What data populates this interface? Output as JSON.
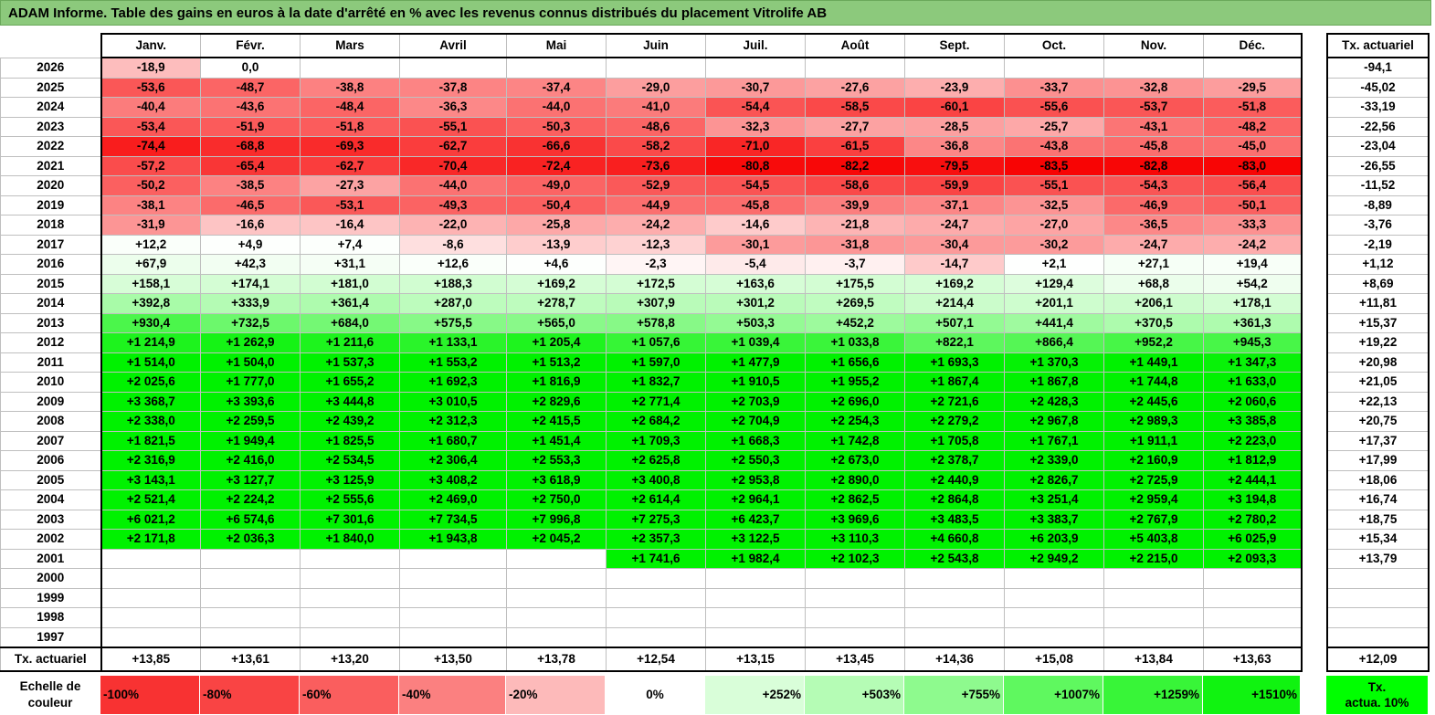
{
  "title": "ADAM Informe. Table des gains en euros à la date d'arrêté en % avec les revenus connus distribués du placement Vitrolife AB",
  "months": [
    "Janv.",
    "Févr.",
    "Mars",
    "Avril",
    "Mai",
    "Juin",
    "Juil.",
    "Août",
    "Sept.",
    "Oct.",
    "Nov.",
    "Déc."
  ],
  "side_header": "Tx. actuariel",
  "rows": [
    {
      "year": "2026",
      "cells": [
        "-18,9",
        "0,0",
        "",
        "",
        "",
        "",
        "",
        "",
        "",
        "",
        "",
        ""
      ],
      "side": "-94,1"
    },
    {
      "year": "2025",
      "cells": [
        "-53,6",
        "-48,7",
        "-38,8",
        "-37,8",
        "-37,4",
        "-29,0",
        "-30,7",
        "-27,6",
        "-23,9",
        "-33,7",
        "-32,8",
        "-29,5"
      ],
      "side": "-45,02"
    },
    {
      "year": "2024",
      "cells": [
        "-40,4",
        "-43,6",
        "-48,4",
        "-36,3",
        "-44,0",
        "-41,0",
        "-54,4",
        "-58,5",
        "-60,1",
        "-55,6",
        "-53,7",
        "-51,8"
      ],
      "side": "-33,19"
    },
    {
      "year": "2023",
      "cells": [
        "-53,4",
        "-51,9",
        "-51,8",
        "-55,1",
        "-50,3",
        "-48,6",
        "-32,3",
        "-27,7",
        "-28,5",
        "-25,7",
        "-43,1",
        "-48,2"
      ],
      "side": "-22,56"
    },
    {
      "year": "2022",
      "cells": [
        "-74,4",
        "-68,8",
        "-69,3",
        "-62,7",
        "-66,6",
        "-58,2",
        "-71,0",
        "-61,5",
        "-36,8",
        "-43,8",
        "-45,8",
        "-45,0"
      ],
      "side": "-23,04"
    },
    {
      "year": "2021",
      "cells": [
        "-57,2",
        "-65,4",
        "-62,7",
        "-70,4",
        "-72,4",
        "-73,6",
        "-80,8",
        "-82,2",
        "-79,5",
        "-83,5",
        "-82,8",
        "-83,0"
      ],
      "side": "-26,55"
    },
    {
      "year": "2020",
      "cells": [
        "-50,2",
        "-38,5",
        "-27,3",
        "-44,0",
        "-49,0",
        "-52,9",
        "-54,5",
        "-58,6",
        "-59,9",
        "-55,1",
        "-54,3",
        "-56,4"
      ],
      "side": "-11,52"
    },
    {
      "year": "2019",
      "cells": [
        "-38,1",
        "-46,5",
        "-53,1",
        "-49,3",
        "-50,4",
        "-44,9",
        "-45,8",
        "-39,9",
        "-37,1",
        "-32,5",
        "-46,9",
        "-50,1"
      ],
      "side": "-8,89"
    },
    {
      "year": "2018",
      "cells": [
        "-31,9",
        "-16,6",
        "-16,4",
        "-22,0",
        "-25,8",
        "-24,2",
        "-14,6",
        "-21,8",
        "-24,7",
        "-27,0",
        "-36,5",
        "-33,3"
      ],
      "side": "-3,76"
    },
    {
      "year": "2017",
      "cells": [
        "+12,2",
        "+4,9",
        "+7,4",
        "-8,6",
        "-13,9",
        "-12,3",
        "-30,1",
        "-31,8",
        "-30,4",
        "-30,2",
        "-24,7",
        "-24,2"
      ],
      "side": "-2,19"
    },
    {
      "year": "2016",
      "cells": [
        "+67,9",
        "+42,3",
        "+31,1",
        "+12,6",
        "+4,6",
        "-2,3",
        "-5,4",
        "-3,7",
        "-14,7",
        "+2,1",
        "+27,1",
        "+19,4"
      ],
      "side": "+1,12"
    },
    {
      "year": "2015",
      "cells": [
        "+158,1",
        "+174,1",
        "+181,0",
        "+188,3",
        "+169,2",
        "+172,5",
        "+163,6",
        "+175,5",
        "+169,2",
        "+129,4",
        "+68,8",
        "+54,2"
      ],
      "side": "+8,69"
    },
    {
      "year": "2014",
      "cells": [
        "+392,8",
        "+333,9",
        "+361,4",
        "+287,0",
        "+278,7",
        "+307,9",
        "+301,2",
        "+269,5",
        "+214,4",
        "+201,1",
        "+206,1",
        "+178,1"
      ],
      "side": "+11,81"
    },
    {
      "year": "2013",
      "cells": [
        "+930,4",
        "+732,5",
        "+684,0",
        "+575,5",
        "+565,0",
        "+578,8",
        "+503,3",
        "+452,2",
        "+507,1",
        "+441,4",
        "+370,5",
        "+361,3"
      ],
      "side": "+15,37"
    },
    {
      "year": "2012",
      "cells": [
        "+1 214,9",
        "+1 262,9",
        "+1 211,6",
        "+1 133,1",
        "+1 205,4",
        "+1 057,6",
        "+1 039,4",
        "+1 033,8",
        "+822,1",
        "+866,4",
        "+952,2",
        "+945,3"
      ],
      "side": "+19,22"
    },
    {
      "year": "2011",
      "cells": [
        "+1 514,0",
        "+1 504,0",
        "+1 537,3",
        "+1 553,2",
        "+1 513,2",
        "+1 597,0",
        "+1 477,9",
        "+1 656,6",
        "+1 693,3",
        "+1 370,3",
        "+1 449,1",
        "+1 347,3"
      ],
      "side": "+20,98"
    },
    {
      "year": "2010",
      "cells": [
        "+2 025,6",
        "+1 777,0",
        "+1 655,2",
        "+1 692,3",
        "+1 816,9",
        "+1 832,7",
        "+1 910,5",
        "+1 955,2",
        "+1 867,4",
        "+1 867,8",
        "+1 744,8",
        "+1 633,0"
      ],
      "side": "+21,05"
    },
    {
      "year": "2009",
      "cells": [
        "+3 368,7",
        "+3 393,6",
        "+3 444,8",
        "+3 010,5",
        "+2 829,6",
        "+2 771,4",
        "+2 703,9",
        "+2 696,0",
        "+2 721,6",
        "+2 428,3",
        "+2 445,6",
        "+2 060,6"
      ],
      "side": "+22,13"
    },
    {
      "year": "2008",
      "cells": [
        "+2 338,0",
        "+2 259,5",
        "+2 439,2",
        "+2 312,3",
        "+2 415,5",
        "+2 684,2",
        "+2 704,9",
        "+2 254,3",
        "+2 279,2",
        "+2 967,8",
        "+2 989,3",
        "+3 385,8"
      ],
      "side": "+20,75"
    },
    {
      "year": "2007",
      "cells": [
        "+1 821,5",
        "+1 949,4",
        "+1 825,5",
        "+1 680,7",
        "+1 451,4",
        "+1 709,3",
        "+1 668,3",
        "+1 742,8",
        "+1 705,8",
        "+1 767,1",
        "+1 911,1",
        "+2 223,0"
      ],
      "side": "+17,37"
    },
    {
      "year": "2006",
      "cells": [
        "+2 316,9",
        "+2 416,0",
        "+2 534,5",
        "+2 306,4",
        "+2 553,3",
        "+2 625,8",
        "+2 550,3",
        "+2 673,0",
        "+2 378,7",
        "+2 339,0",
        "+2 160,9",
        "+1 812,9"
      ],
      "side": "+17,99"
    },
    {
      "year": "2005",
      "cells": [
        "+3 143,1",
        "+3 127,7",
        "+3 125,9",
        "+3 408,2",
        "+3 618,9",
        "+3 400,8",
        "+2 953,8",
        "+2 890,0",
        "+2 440,9",
        "+2 826,7",
        "+2 725,9",
        "+2 444,1"
      ],
      "side": "+18,06"
    },
    {
      "year": "2004",
      "cells": [
        "+2 521,4",
        "+2 224,2",
        "+2 555,6",
        "+2 469,0",
        "+2 750,0",
        "+2 614,4",
        "+2 964,1",
        "+2 862,5",
        "+2 864,8",
        "+3 251,4",
        "+2 959,4",
        "+3 194,8"
      ],
      "side": "+16,74"
    },
    {
      "year": "2003",
      "cells": [
        "+6 021,2",
        "+6 574,6",
        "+7 301,6",
        "+7 734,5",
        "+7 996,8",
        "+7 275,3",
        "+6 423,7",
        "+3 969,6",
        "+3 483,5",
        "+3 383,7",
        "+2 767,9",
        "+2 780,2"
      ],
      "side": "+18,75"
    },
    {
      "year": "2002",
      "cells": [
        "+2 171,8",
        "+2 036,3",
        "+1 840,0",
        "+1 943,8",
        "+2 045,2",
        "+2 357,3",
        "+3 122,5",
        "+3 110,3",
        "+4 660,8",
        "+6 203,9",
        "+5 403,8",
        "+6 025,9"
      ],
      "side": "+15,34"
    },
    {
      "year": "2001",
      "cells": [
        "",
        "",
        "",
        "",
        "",
        "+1 741,6",
        "+1 982,4",
        "+2 102,3",
        "+2 543,8",
        "+2 949,2",
        "+2 215,0",
        "+2 093,3"
      ],
      "side": "+13,79"
    },
    {
      "year": "2000",
      "cells": [
        "",
        "",
        "",
        "",
        "",
        "",
        "",
        "",
        "",
        "",
        "",
        ""
      ],
      "side": ""
    },
    {
      "year": "1999",
      "cells": [
        "",
        "",
        "",
        "",
        "",
        "",
        "",
        "",
        "",
        "",
        "",
        ""
      ],
      "side": ""
    },
    {
      "year": "1998",
      "cells": [
        "",
        "",
        "",
        "",
        "",
        "",
        "",
        "",
        "",
        "",
        "",
        ""
      ],
      "side": ""
    },
    {
      "year": "1997",
      "cells": [
        "",
        "",
        "",
        "",
        "",
        "",
        "",
        "",
        "",
        "",
        "",
        ""
      ],
      "side": ""
    }
  ],
  "summary": {
    "label": "Tx. actuariel",
    "cells": [
      "+13,85",
      "+13,61",
      "+13,20",
      "+13,50",
      "+13,78",
      "+12,54",
      "+13,15",
      "+13,45",
      "+14,36",
      "+15,08",
      "+13,84",
      "+13,63"
    ],
    "side": "+12,09"
  },
  "scale": {
    "label_line1": "Echelle de",
    "label_line2": "couleur",
    "items": [
      {
        "label": "-100%",
        "color": "#f83232",
        "kind": "neg"
      },
      {
        "label": "-80%",
        "color": "#f94444",
        "kind": "neg"
      },
      {
        "label": "-60%",
        "color": "#fa5e5e",
        "kind": "neg"
      },
      {
        "label": "-40%",
        "color": "#fb8080",
        "kind": "neg"
      },
      {
        "label": "-20%",
        "color": "#fdbaba",
        "kind": "neg"
      },
      {
        "label": "0%",
        "color": "#ffffff",
        "kind": "zero"
      },
      {
        "label": "+252%",
        "color": "#d9fed9",
        "kind": "pos"
      },
      {
        "label": "+503%",
        "color": "#b5fcb5",
        "kind": "pos"
      },
      {
        "label": "+755%",
        "color": "#8efa8e",
        "kind": "pos"
      },
      {
        "label": "+1007%",
        "color": "#5ff85f",
        "kind": "pos"
      },
      {
        "label": "+1259%",
        "color": "#38f538",
        "kind": "pos"
      },
      {
        "label": "+1510%",
        "color": "#10f310",
        "kind": "pos"
      }
    ],
    "side_line1": "Tx.",
    "side_line2": "actua. 10%"
  }
}
